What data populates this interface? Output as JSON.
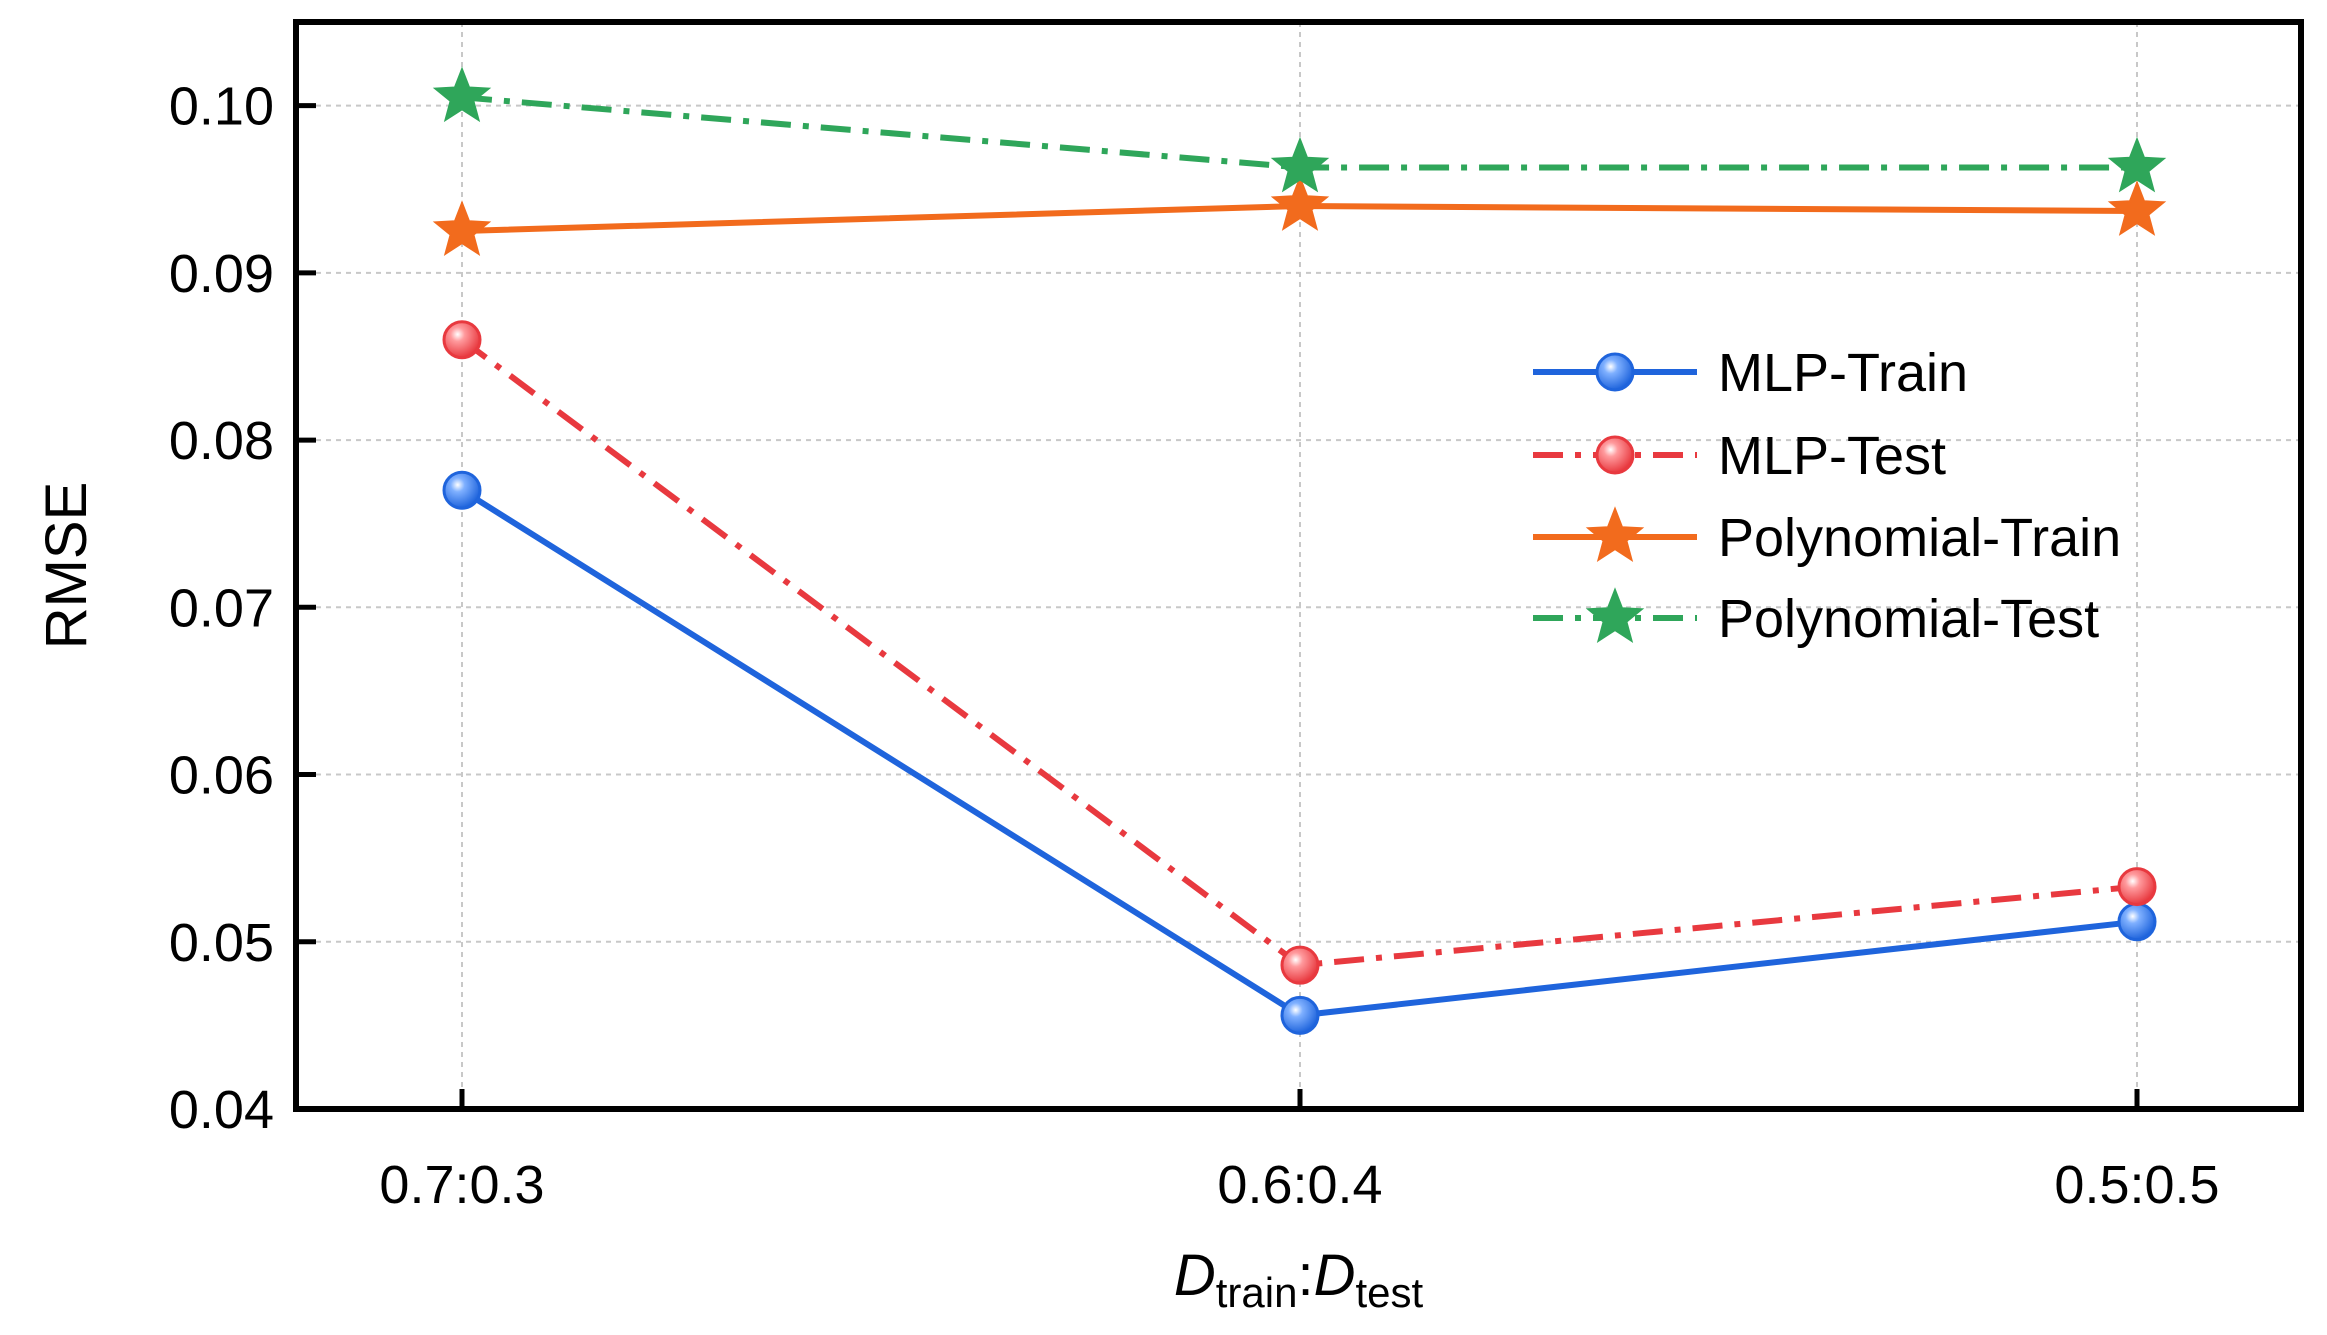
{
  "chart_data": {
    "type": "line",
    "categories": [
      "0.7:0.3",
      "0.6:0.4",
      "0.5:0.5"
    ],
    "ylabel": "RMSE",
    "xlabel": {
      "main_left": "D",
      "sub_left": "train",
      "separator": ":",
      "main_right": "D",
      "sub_right": "test"
    },
    "ylim": [
      0.04,
      0.105
    ],
    "yticks": [
      "0.04",
      "0.05",
      "0.06",
      "0.07",
      "0.08",
      "0.09",
      "0.10"
    ],
    "grid": true,
    "legend_position": "right",
    "series": [
      {
        "name": "MLP-Train",
        "values": [
          0.077,
          0.0456,
          0.0512
        ],
        "color": "#1f64dc",
        "dash": "solid",
        "marker": "circle"
      },
      {
        "name": "MLP-Test",
        "values": [
          0.086,
          0.0486,
          0.0533
        ],
        "color": "#e8393f",
        "dash": "dashdot",
        "marker": "circle"
      },
      {
        "name": "Polynomial-Train",
        "values": [
          0.0925,
          0.094,
          0.0937
        ],
        "color": "#f26b1d",
        "dash": "solid",
        "marker": "star"
      },
      {
        "name": "Polynomial-Test",
        "values": [
          0.1005,
          0.0963,
          0.0963
        ],
        "color": "#2fa65a",
        "dash": "dashdot",
        "marker": "star"
      }
    ]
  }
}
